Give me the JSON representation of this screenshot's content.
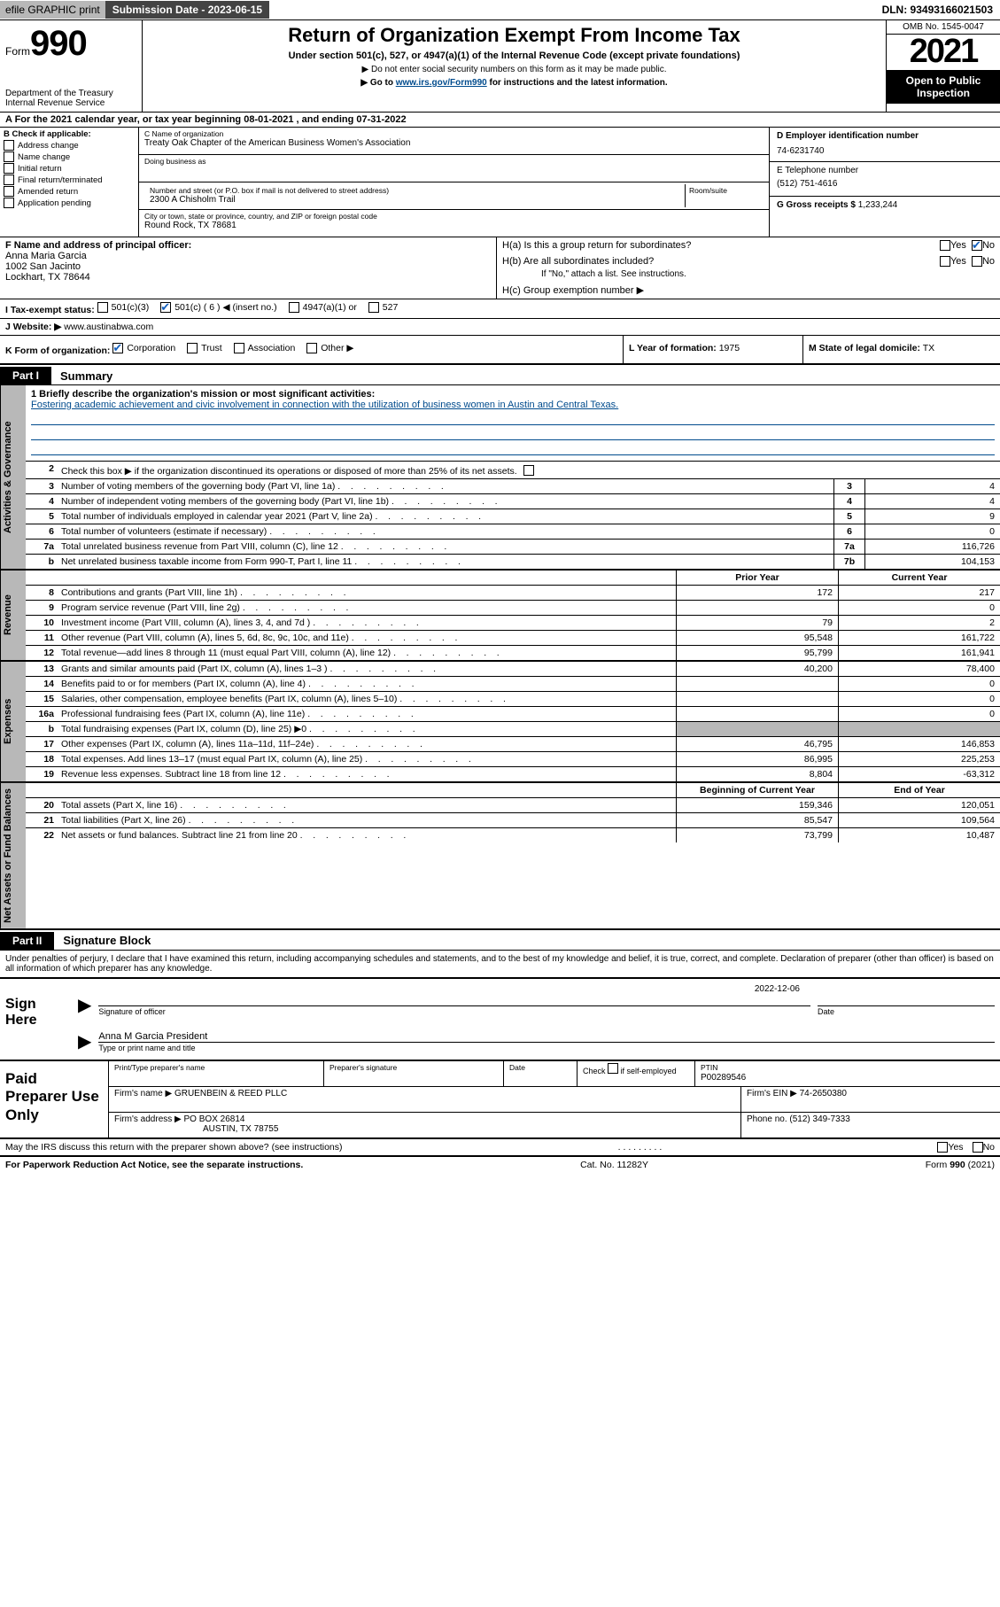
{
  "meta": {
    "efile_label": "efile GRAPHIC print",
    "submission_label": "Submission Date - 2023-06-15",
    "dln": "DLN: 93493166021503",
    "omb": "OMB No. 1545-0047",
    "form_word": "Form",
    "form_num": "990",
    "year": "2021",
    "open_public_1": "Open to Public",
    "open_public_2": "Inspection",
    "title": "Return of Organization Exempt From Income Tax",
    "subtitle": "Under section 501(c), 527, or 4947(a)(1) of the Internal Revenue Code (except private foundations)",
    "note1": "▶ Do not enter social security numbers on this form as it may be made public.",
    "note2_pre": "▶ Go to ",
    "note2_link": "www.irs.gov/Form990",
    "note2_post": " for instructions and the latest information.",
    "dept": "Department of the Treasury Internal Revenue Service"
  },
  "period": {
    "label_pre": "A For the 2021 calendar year, or tax year beginning ",
    "begin": "08-01-2021",
    "middle": " , and ending ",
    "end": "07-31-2022"
  },
  "boxB": {
    "label": "B Check if applicable:",
    "items": [
      "Address change",
      "Name change",
      "Initial return",
      "Final return/terminated",
      "Amended return",
      "Application pending"
    ]
  },
  "boxC": {
    "name_label": "C Name of organization",
    "name": "Treaty Oak Chapter of the American Business Women's Association",
    "dba_label": "Doing business as",
    "dba": "",
    "addr_label": "Number and street (or P.O. box if mail is not delivered to street address)",
    "addr": "2300 A Chisholm Trail",
    "room_label": "Room/suite",
    "city_label": "City or town, state or province, country, and ZIP or foreign postal code",
    "city": "Round Rock, TX  78681"
  },
  "boxD": {
    "label": "D Employer identification number",
    "value": "74-6231740"
  },
  "boxE": {
    "label": "E Telephone number",
    "value": "(512) 751-4616"
  },
  "boxG": {
    "label": "G Gross receipts $",
    "value": "1,233,244"
  },
  "boxF": {
    "label": "F Name and address of principal officer:",
    "name": "Anna Maria Garcia",
    "addr1": "1002 San Jacinto",
    "addr2": "Lockhart, TX  78644"
  },
  "boxH": {
    "a_label": "H(a)  Is this a group return for subordinates?",
    "a_yes": "Yes",
    "a_no": "No",
    "b_label": "H(b)  Are all subordinates included?",
    "b_note": "If \"No,\" attach a list. See instructions.",
    "c_label": "H(c)  Group exemption number ▶"
  },
  "boxI": {
    "label": "I    Tax-exempt status:",
    "opts": [
      "501(c)(3)",
      "501(c) ( 6 ) ◀ (insert no.)",
      "4947(a)(1) or",
      "527"
    ]
  },
  "boxJ": {
    "label": "J   Website: ▶",
    "value": "www.austinabwa.com"
  },
  "boxK": {
    "label": "K Form of organization:",
    "opts": [
      "Corporation",
      "Trust",
      "Association",
      "Other ▶"
    ]
  },
  "boxL": {
    "label": "L Year of formation:",
    "value": "1975"
  },
  "boxM": {
    "label": "M State of legal domicile:",
    "value": "TX"
  },
  "parts": {
    "p1_tab": "Part I",
    "p1_title": "Summary",
    "p2_tab": "Part II",
    "p2_title": "Signature Block"
  },
  "summary": {
    "q1_label": "1   Briefly describe the organization's mission or most significant activities:",
    "q1_text": "Fostering academic achievement and civic involvement in connection with the utilization of business women in Austin and Central Texas.",
    "q2": "Check this box ▶          if the organization discontinued its operations or disposed of more than 25% of its net assets.",
    "rows_gov": [
      {
        "n": "3",
        "text": "Number of voting members of the governing body (Part VI, line 1a)",
        "line": "3",
        "val": "4"
      },
      {
        "n": "4",
        "text": "Number of independent voting members of the governing body (Part VI, line 1b)",
        "line": "4",
        "val": "4"
      },
      {
        "n": "5",
        "text": "Total number of individuals employed in calendar year 2021 (Part V, line 2a)",
        "line": "5",
        "val": "9"
      },
      {
        "n": "6",
        "text": "Total number of volunteers (estimate if necessary)",
        "line": "6",
        "val": "0"
      },
      {
        "n": "7a",
        "text": "Total unrelated business revenue from Part VIII, column (C), line 12",
        "line": "7a",
        "val": "116,726"
      },
      {
        "n": "b",
        "text": "Net unrelated business taxable income from Form 990-T, Part I, line 11",
        "line": "7b",
        "val": "104,153"
      }
    ],
    "prior_hdr": "Prior Year",
    "curr_hdr": "Current Year",
    "rows_rev": [
      {
        "n": "8",
        "text": "Contributions and grants (Part VIII, line 1h)",
        "prior": "172",
        "curr": "217"
      },
      {
        "n": "9",
        "text": "Program service revenue (Part VIII, line 2g)",
        "prior": "",
        "curr": "0"
      },
      {
        "n": "10",
        "text": "Investment income (Part VIII, column (A), lines 3, 4, and 7d )",
        "prior": "79",
        "curr": "2"
      },
      {
        "n": "11",
        "text": "Other revenue (Part VIII, column (A), lines 5, 6d, 8c, 9c, 10c, and 11e)",
        "prior": "95,548",
        "curr": "161,722"
      },
      {
        "n": "12",
        "text": "Total revenue—add lines 8 through 11 (must equal Part VIII, column (A), line 12)",
        "prior": "95,799",
        "curr": "161,941"
      }
    ],
    "rows_exp": [
      {
        "n": "13",
        "text": "Grants and similar amounts paid (Part IX, column (A), lines 1–3 )",
        "prior": "40,200",
        "curr": "78,400"
      },
      {
        "n": "14",
        "text": "Benefits paid to or for members (Part IX, column (A), line 4)",
        "prior": "",
        "curr": "0"
      },
      {
        "n": "15",
        "text": "Salaries, other compensation, employee benefits (Part IX, column (A), lines 5–10)",
        "prior": "",
        "curr": "0"
      },
      {
        "n": "16a",
        "text": "Professional fundraising fees (Part IX, column (A), line 11e)",
        "prior": "",
        "curr": "0"
      },
      {
        "n": "b",
        "text": "Total fundraising expenses (Part IX, column (D), line 25) ▶0",
        "prior": "SHADE",
        "curr": "SHADE"
      },
      {
        "n": "17",
        "text": "Other expenses (Part IX, column (A), lines 11a–11d, 11f–24e)",
        "prior": "46,795",
        "curr": "146,853"
      },
      {
        "n": "18",
        "text": "Total expenses. Add lines 13–17 (must equal Part IX, column (A), line 25)",
        "prior": "86,995",
        "curr": "225,253"
      },
      {
        "n": "19",
        "text": "Revenue less expenses. Subtract line 18 from line 12",
        "prior": "8,804",
        "curr": "-63,312"
      }
    ],
    "boy_hdr": "Beginning of Current Year",
    "eoy_hdr": "End of Year",
    "rows_net": [
      {
        "n": "20",
        "text": "Total assets (Part X, line 16)",
        "prior": "159,346",
        "curr": "120,051"
      },
      {
        "n": "21",
        "text": "Total liabilities (Part X, line 26)",
        "prior": "85,547",
        "curr": "109,564"
      },
      {
        "n": "22",
        "text": "Net assets or fund balances. Subtract line 21 from line 20",
        "prior": "73,799",
        "curr": "10,487"
      }
    ],
    "vtabs": {
      "gov": "Activities & Governance",
      "rev": "Revenue",
      "exp": "Expenses",
      "net": "Net Assets or Fund Balances"
    }
  },
  "sig": {
    "penalties": "Under penalties of perjury, I declare that I have examined this return, including accompanying schedules and statements, and to the best of my knowledge and belief, it is true, correct, and complete. Declaration of preparer (other than officer) is based on all information of which preparer has any knowledge.",
    "sign_here": "Sign Here",
    "sig_officer_label": "Signature of officer",
    "date_label": "Date",
    "date": "2022-12-06",
    "officer_name": "Anna M Garcia  President",
    "name_title_label": "Type or print name and title"
  },
  "prep": {
    "label": "Paid Preparer Use Only",
    "h1": "Print/Type preparer's name",
    "h2": "Preparer's signature",
    "h3": "Date",
    "h4_pre": "Check",
    "h4_post": "if self-employed",
    "h5": "PTIN",
    "ptin": "P00289546",
    "firm_name_label": "Firm's name     ▶",
    "firm_name": "GRUENBEIN & REED PLLC",
    "firm_ein_label": "Firm's EIN ▶",
    "firm_ein": "74-2650380",
    "firm_addr_label": "Firm's address ▶",
    "firm_addr1": "PO BOX 26814",
    "firm_addr2": "AUSTIN, TX  78755",
    "phone_label": "Phone no.",
    "phone": "(512) 349-7333"
  },
  "footer": {
    "discuss": "May the IRS discuss this return with the preparer shown above? (see instructions)",
    "yes": "Yes",
    "no": "No",
    "pra": "For Paperwork Reduction Act Notice, see the separate instructions.",
    "cat": "Cat. No. 11282Y",
    "form": "Form 990 (2021)"
  },
  "colors": {
    "shade": "#b8b8b8",
    "link": "#004b8d",
    "check": "#1560bd"
  }
}
